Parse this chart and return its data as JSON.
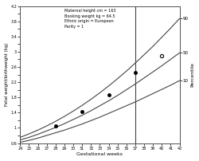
{
  "title": "",
  "xlabel": "Gestational weeks",
  "ylabel": "Fetal weight/birthweight (kg)",
  "annotation_lines": [
    "Maternal height cm = 163",
    "Booking weight kg = 64.5",
    "Ethnic origin = European",
    "Parity = 1"
  ],
  "percentile_label": "Percentile",
  "percentile_labels": [
    "90",
    "50",
    "10"
  ],
  "xmin": 24,
  "xmax": 42,
  "ymin": 0.6,
  "ymax": 4.2,
  "vertical_line_x": 37,
  "background_color": "#ffffff",
  "curve_color": "#444444",
  "scatter_filled": [
    [
      28,
      1.05
    ],
    [
      31,
      1.42
    ],
    [
      34,
      1.87
    ],
    [
      37,
      2.45
    ]
  ],
  "scatter_open": [
    [
      40,
      2.9
    ]
  ],
  "weeks": [
    24,
    25,
    26,
    27,
    28,
    29,
    30,
    31,
    32,
    33,
    34,
    35,
    36,
    37,
    38,
    39,
    40,
    41,
    42
  ],
  "p10": [
    0.62,
    0.67,
    0.73,
    0.8,
    0.87,
    0.94,
    1.02,
    1.1,
    1.19,
    1.28,
    1.38,
    1.48,
    1.58,
    1.68,
    1.79,
    1.9,
    2.01,
    2.12,
    2.24
  ],
  "p50": [
    0.68,
    0.75,
    0.83,
    0.92,
    1.01,
    1.11,
    1.22,
    1.33,
    1.45,
    1.58,
    1.71,
    1.85,
    2.0,
    2.15,
    2.31,
    2.47,
    2.63,
    2.8,
    2.97
  ],
  "p90": [
    0.75,
    0.84,
    0.94,
    1.05,
    1.17,
    1.3,
    1.44,
    1.59,
    1.75,
    1.92,
    2.1,
    2.29,
    2.49,
    2.7,
    2.92,
    3.14,
    3.38,
    3.62,
    3.87
  ],
  "yticks": [
    0.6,
    0.8,
    1.0,
    1.2,
    1.4,
    1.6,
    1.8,
    2.0,
    2.2,
    2.4,
    2.6,
    2.8,
    3.0,
    3.2,
    3.4,
    3.6,
    3.8,
    4.0,
    4.2
  ],
  "ytick_labels": [
    "0.6",
    "",
    "1",
    "",
    "1.4",
    "",
    "1.8",
    "",
    "2.2",
    "",
    "2.6",
    "",
    "3",
    "",
    "3.4",
    "",
    "3.8",
    "",
    "4.2"
  ]
}
